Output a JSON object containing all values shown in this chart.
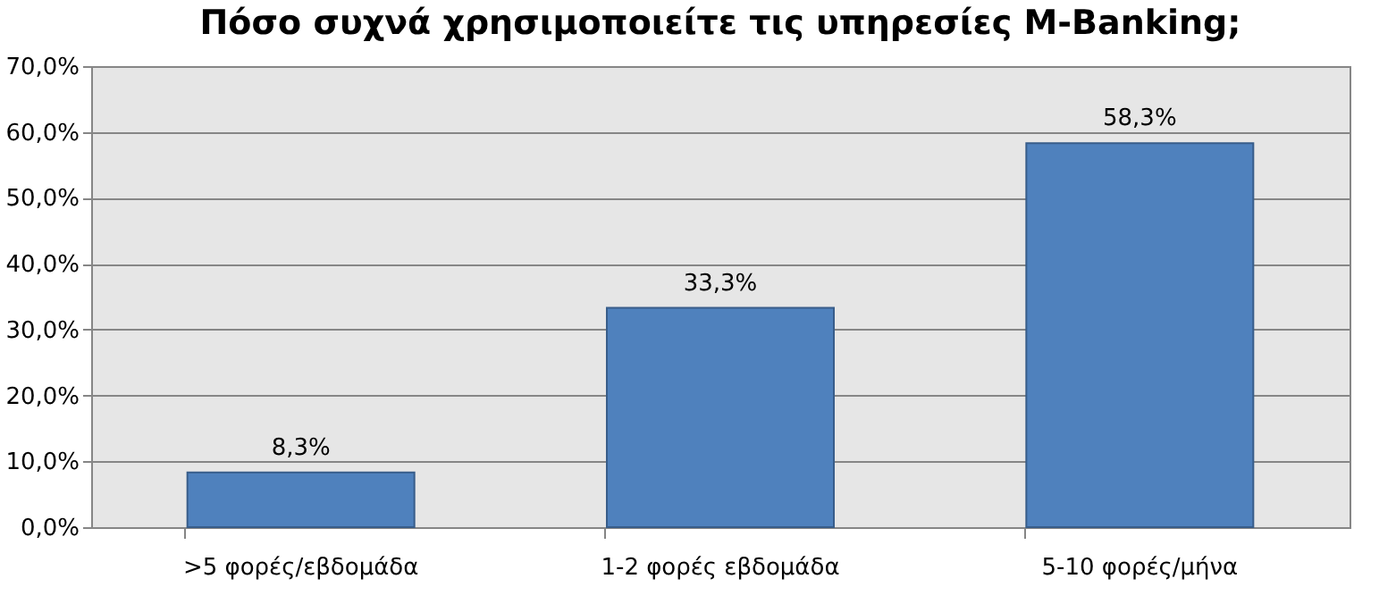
{
  "chart_data": {
    "type": "bar",
    "title": "Πόσο συχνά χρησιμοποιείτε τις υπηρεσίες M-Banking;",
    "categories": [
      ">5 φορές/εβδομάδα",
      "1-2 φορές εβδομάδα",
      "5-10 φορές/μήνα"
    ],
    "values": [
      8.3,
      33.3,
      58.3
    ],
    "color": "#4f81bd",
    "value_labels": [
      "8,3%",
      "33,3%",
      "58,3%"
    ],
    "ylim": [
      0,
      70
    ],
    "yticks": [
      {
        "value": 0,
        "label": "0,0%"
      },
      {
        "value": 10,
        "label": "10,0%"
      },
      {
        "value": 20,
        "label": "20,0%"
      },
      {
        "value": 30,
        "label": "30,0%"
      },
      {
        "value": 40,
        "label": "40,0%"
      },
      {
        "value": 50,
        "label": "50,0%"
      },
      {
        "value": 60,
        "label": "60,0%"
      },
      {
        "value": 70,
        "label": "70,0%"
      }
    ],
    "grid": true
  }
}
